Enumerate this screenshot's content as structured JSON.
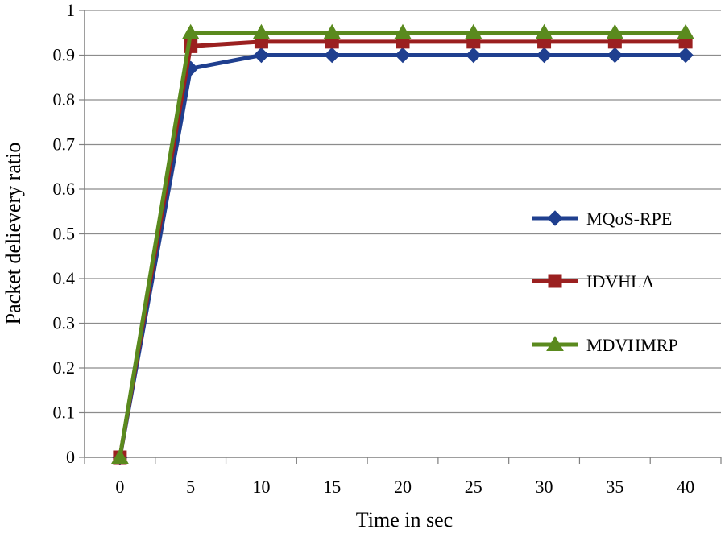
{
  "chart_data": {
    "type": "line",
    "title": "",
    "xlabel": "Time in sec",
    "ylabel": "Packet delievery ratio",
    "x": [
      0,
      5,
      10,
      15,
      20,
      25,
      30,
      35,
      40
    ],
    "xticks": [
      "0",
      "5",
      "10",
      "15",
      "20",
      "25",
      "30",
      "35",
      "40"
    ],
    "yticks": [
      "0",
      "0.1",
      "0.2",
      "0.3",
      "0.4",
      "0.5",
      "0.6",
      "0.7",
      "0.8",
      "0.9",
      "1"
    ],
    "ylim": [
      0,
      1
    ],
    "grid": true,
    "legend_position": "right",
    "series": [
      {
        "name": "MQoS-RPE",
        "marker": "diamond",
        "color": "#1F3F8F",
        "values": [
          0,
          0.87,
          0.9,
          0.9,
          0.9,
          0.9,
          0.9,
          0.9,
          0.9
        ]
      },
      {
        "name": "IDVHLA",
        "marker": "square",
        "color": "#9B2020",
        "values": [
          0,
          0.92,
          0.93,
          0.93,
          0.93,
          0.93,
          0.93,
          0.93,
          0.93
        ]
      },
      {
        "name": "MDVHMRP",
        "marker": "triangle",
        "color": "#5A8A1E",
        "values": [
          0,
          0.95,
          0.95,
          0.95,
          0.95,
          0.95,
          0.95,
          0.95,
          0.95
        ]
      }
    ]
  }
}
